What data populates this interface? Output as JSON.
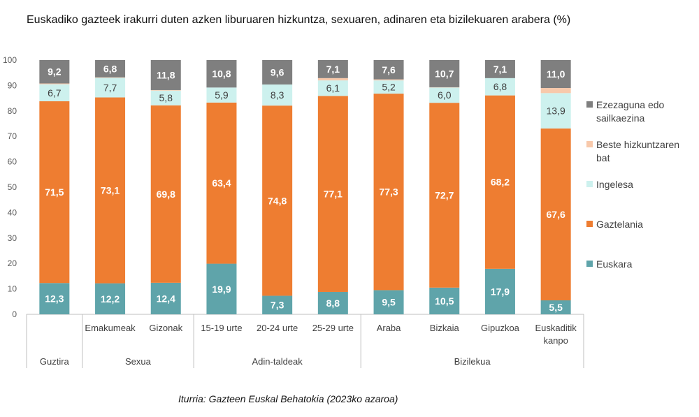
{
  "title": "Euskadiko gazteek irakurri duten azken liburuaren hizkuntza, sexuaren, adinaren eta bizilekuaren arabera (%)",
  "source": "Iturria: Gazteen Euskal Behatokia (2023ko azaroa)",
  "chart_data": {
    "type": "bar",
    "stacked": true,
    "ylim": [
      0,
      100
    ],
    "yticks": [
      0,
      10,
      20,
      30,
      40,
      50,
      60,
      70,
      80,
      90,
      100
    ],
    "grid": false,
    "legend_position": "right",
    "categories": [
      "",
      "Emakumeak",
      "Gizonak",
      "15-19 urte",
      "20-24 urte",
      "25-29 urte",
      "Araba",
      "Bizkaia",
      "Gipuzkoa",
      "Euskaditik kanpo"
    ],
    "groups": [
      {
        "label": "Guztira",
        "count": 1
      },
      {
        "label": "Sexua",
        "count": 2
      },
      {
        "label": "Adin-taldeak",
        "count": 3
      },
      {
        "label": "Bizilekua",
        "count": 4
      }
    ],
    "series": [
      {
        "name": "Euskara",
        "color": "#5fa4aa",
        "values": [
          12.3,
          12.2,
          12.4,
          19.9,
          7.3,
          8.8,
          9.5,
          10.5,
          17.9,
          5.5
        ],
        "labels": [
          "12,3",
          "12,2",
          "12,4",
          "19,9",
          "7,3",
          "8,8",
          "9,5",
          "10,5",
          "17,9",
          "5,5"
        ]
      },
      {
        "name": "Gaztelania",
        "color": "#ee7d31",
        "values": [
          71.5,
          73.1,
          69.8,
          63.4,
          74.8,
          77.1,
          77.3,
          72.7,
          68.2,
          67.6
        ],
        "labels": [
          "71,5",
          "73,1",
          "69,8",
          "63,4",
          "74,8",
          "77,1",
          "77,3",
          "72,7",
          "68,2",
          "67,6"
        ]
      },
      {
        "name": "Ingelesa",
        "color": "#cdf1ee",
        "values": [
          6.7,
          7.7,
          5.8,
          5.9,
          8.3,
          6.1,
          5.2,
          6.0,
          6.8,
          13.9
        ],
        "labels": [
          "6,7",
          "7,7",
          "5,8",
          "5,9",
          "8,3",
          "6,1",
          "5,2",
          "6,0",
          "6,8",
          "13,9"
        ]
      },
      {
        "name": "Beste hizkuntzaren bat",
        "color": "#f8c9ab",
        "values": [
          0.3,
          0.2,
          0.2,
          0.0,
          0.0,
          0.9,
          0.4,
          0.1,
          0.0,
          2.0
        ],
        "labels": [
          "",
          "",
          "",
          "",
          "",
          "",
          "",
          "",
          "",
          ""
        ]
      },
      {
        "name": "Ezezaguna edo sailkaezina",
        "color": "#7f7f7f",
        "values": [
          9.2,
          6.8,
          11.8,
          10.8,
          9.6,
          7.1,
          7.6,
          10.7,
          7.1,
          11.0
        ],
        "labels": [
          "9,2",
          "6,8",
          "11,8",
          "10,8",
          "9,6",
          "7,1",
          "7,6",
          "10,7",
          "7,1",
          "11,0"
        ]
      }
    ],
    "legend_order": [
      "Ezezaguna edo sailkaezina",
      "Beste hizkuntzaren bat",
      "Ingelesa",
      "Gaztelania",
      "Euskara"
    ]
  }
}
